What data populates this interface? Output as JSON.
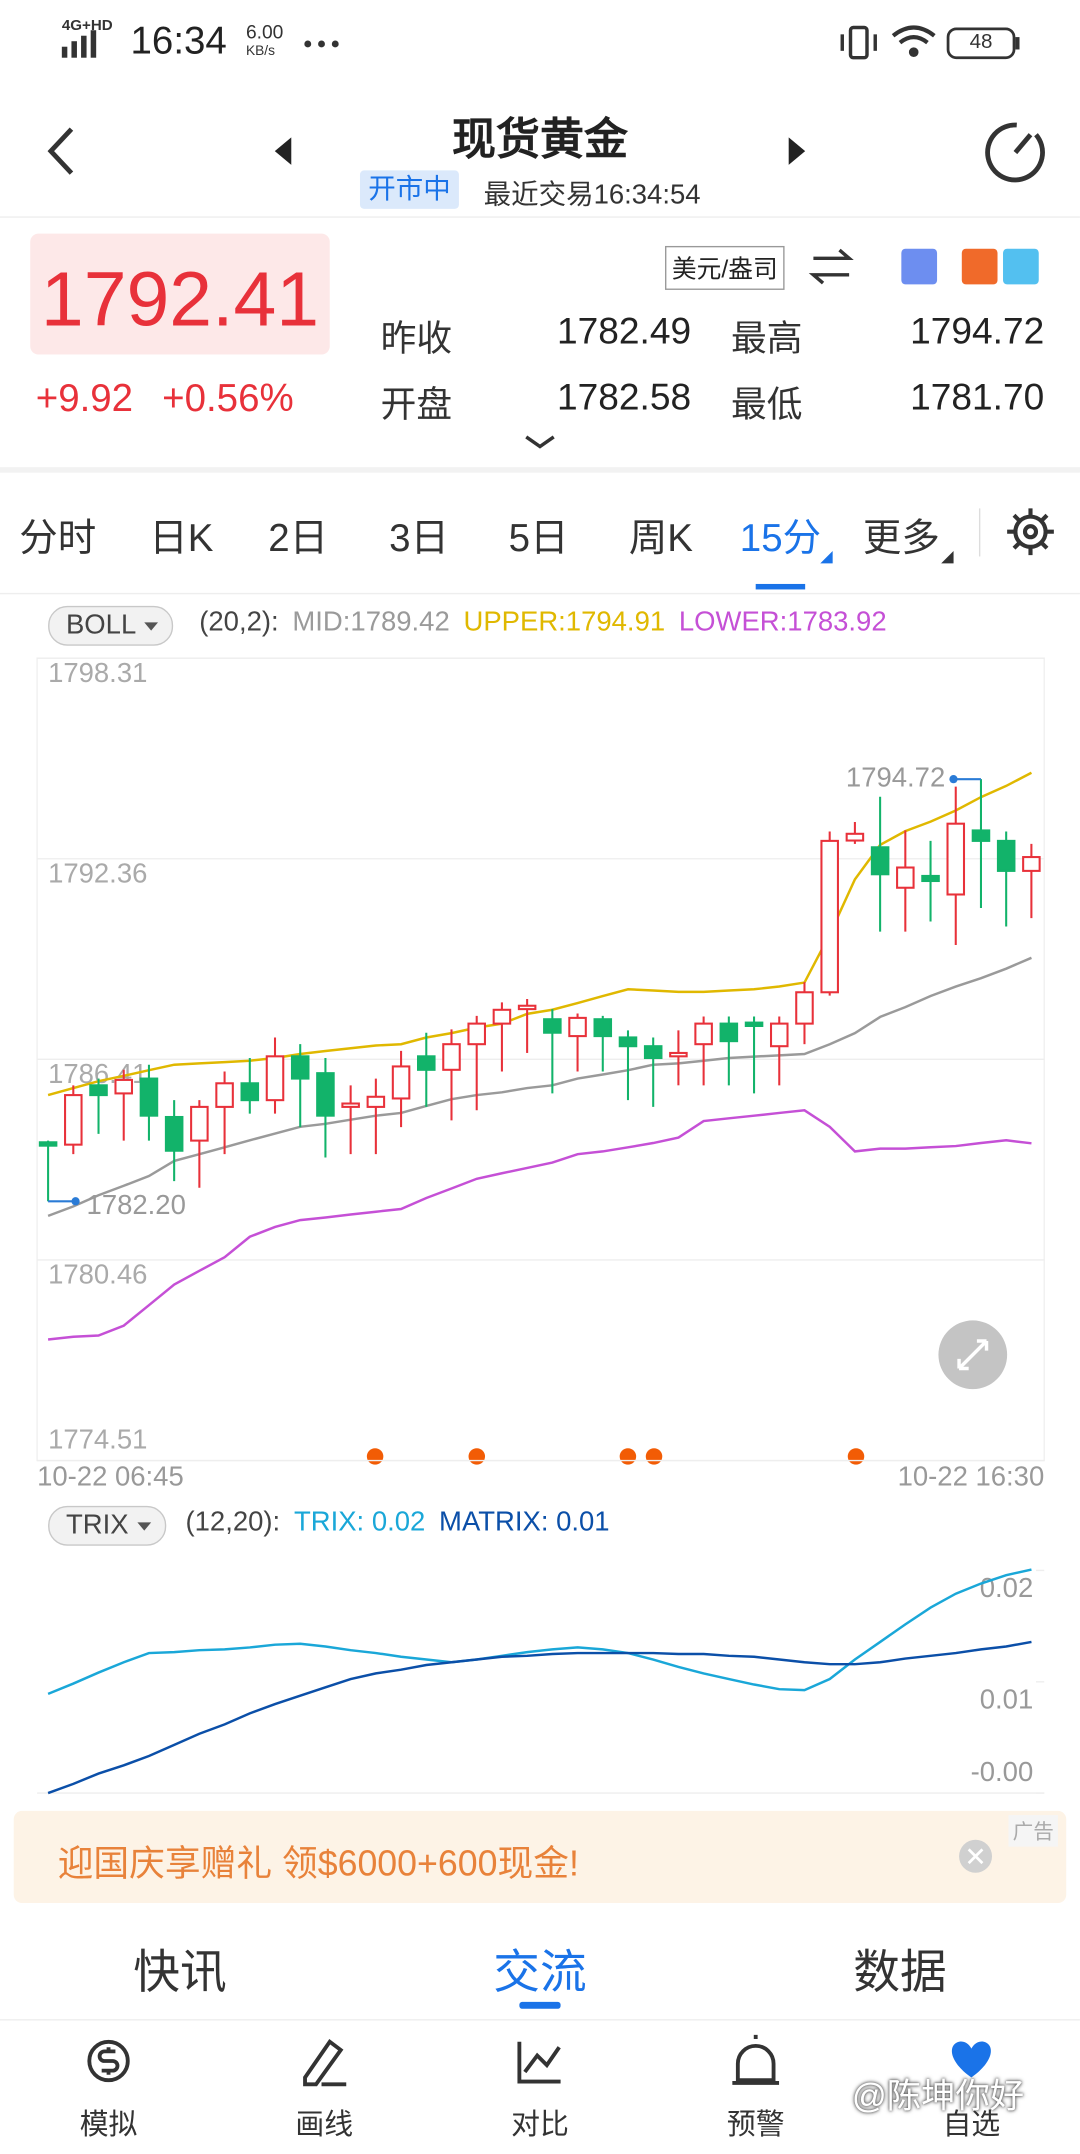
{
  "status_bar": {
    "network": "4G+HD",
    "time": "16:34",
    "speed": "6.00",
    "speed_unit": "KB/s",
    "battery": "48"
  },
  "header": {
    "title": "现货黄金",
    "status": "开市中",
    "last_trade": "最近交易16:34:54"
  },
  "quote": {
    "price": "1792.41",
    "change": "+9.92",
    "change_pct": "+0.56%",
    "unit": "美元/盎司",
    "stats": [
      {
        "label": "昨收",
        "value": "1782.49"
      },
      {
        "label": "最高",
        "value": "1794.72"
      },
      {
        "label": "开盘",
        "value": "1782.58"
      },
      {
        "label": "最低",
        "value": "1781.70"
      }
    ]
  },
  "tabs": [
    "分时",
    "日K",
    "2日",
    "3日",
    "5日",
    "周K",
    "15分",
    "更多"
  ],
  "active_tab": 6,
  "chart_data": [
    {
      "type": "candlestick",
      "indicator": "BOLL",
      "params": "(20,2):",
      "categories": [
        "10-22 06:45",
        null,
        null,
        null,
        null,
        null,
        null,
        null,
        null,
        null,
        null,
        null,
        null,
        null,
        null,
        null,
        null,
        null,
        null,
        null,
        null,
        null,
        null,
        null,
        null,
        null,
        null,
        null,
        null,
        null,
        null,
        null,
        null,
        null,
        null,
        null,
        null,
        null,
        null,
        "10-22 16:30"
      ],
      "open": [
        1783.95,
        1783.88,
        1785.64,
        1785.4,
        1785.84,
        1784.7,
        1784.0,
        1785.0,
        1785.7,
        1785.2,
        1786.5,
        1786.0,
        1785.0,
        1785.0,
        1785.25,
        1786.5,
        1786.1,
        1786.86,
        1787.47,
        1787.9,
        1787.6,
        1787.1,
        1787.6,
        1787.06,
        1786.8,
        1786.5,
        1786.86,
        1787.47,
        1787.5,
        1786.8,
        1787.47,
        1788.4,
        1792.9,
        1792.7,
        1791.5,
        1791.85,
        1791.3,
        1793.2,
        1792.89,
        1792.0
      ],
      "high": [
        1784.0,
        1785.64,
        1785.84,
        1786.1,
        1786.25,
        1785.2,
        1785.2,
        1786.05,
        1786.45,
        1787.06,
        1786.86,
        1786.45,
        1785.64,
        1785.84,
        1786.66,
        1787.2,
        1787.3,
        1787.7,
        1788.1,
        1788.2,
        1787.9,
        1787.77,
        1787.7,
        1787.27,
        1787.06,
        1787.27,
        1787.68,
        1787.68,
        1787.68,
        1787.68,
        1788.7,
        1793.17,
        1793.45,
        1794.2,
        1793.2,
        1792.89,
        1794.5,
        1794.72,
        1793.17,
        1792.8
      ],
      "low": [
        1782.2,
        1783.6,
        1784.2,
        1784.0,
        1784.0,
        1782.8,
        1782.6,
        1783.6,
        1784.8,
        1784.8,
        1784.4,
        1783.5,
        1783.6,
        1783.6,
        1784.4,
        1785.0,
        1784.6,
        1784.9,
        1786.05,
        1786.6,
        1785.4,
        1786.05,
        1786.05,
        1785.2,
        1785.0,
        1785.64,
        1785.64,
        1785.64,
        1785.4,
        1785.64,
        1786.86,
        1788.3,
        1792.8,
        1790.2,
        1790.2,
        1790.5,
        1789.8,
        1790.9,
        1790.35,
        1790.6
      ],
      "close": [
        1783.85,
        1785.35,
        1785.35,
        1785.8,
        1784.74,
        1783.7,
        1785.0,
        1785.7,
        1785.2,
        1786.5,
        1785.84,
        1784.74,
        1785.1,
        1785.3,
        1786.2,
        1786.1,
        1786.86,
        1787.47,
        1787.88,
        1788.0,
        1787.2,
        1787.64,
        1787.1,
        1786.8,
        1786.45,
        1786.6,
        1787.47,
        1786.95,
        1787.4,
        1787.47,
        1788.4,
        1792.89,
        1793.1,
        1791.9,
        1792.1,
        1791.7,
        1793.4,
        1792.89,
        1792.0,
        1792.41
      ],
      "up_color": "#e8313a",
      "down_color": "#12b36a",
      "series": [
        {
          "name": "MID:1789.42",
          "color": "#9a9a9a",
          "values": [
            1781.77,
            1782.05,
            1782.38,
            1782.66,
            1782.95,
            1783.4,
            1783.6,
            1783.8,
            1784.01,
            1784.21,
            1784.41,
            1784.5,
            1784.62,
            1784.74,
            1784.82,
            1785.03,
            1785.23,
            1785.35,
            1785.43,
            1785.56,
            1785.64,
            1785.84,
            1785.96,
            1786.09,
            1786.25,
            1786.29,
            1786.37,
            1786.45,
            1786.49,
            1786.53,
            1786.57,
            1786.86,
            1787.19,
            1787.67,
            1787.96,
            1788.29,
            1788.57,
            1788.82,
            1789.1,
            1789.42
          ]
        },
        {
          "name": "UPPER:1794.91",
          "color": "#e0b800",
          "values": [
            1785.35,
            1785.56,
            1785.76,
            1785.92,
            1786.09,
            1786.25,
            1786.29,
            1786.33,
            1786.37,
            1786.45,
            1786.57,
            1786.66,
            1786.74,
            1786.82,
            1786.86,
            1787.06,
            1787.19,
            1787.35,
            1787.47,
            1787.76,
            1787.88,
            1788.08,
            1788.29,
            1788.49,
            1788.45,
            1788.41,
            1788.41,
            1788.45,
            1788.49,
            1788.57,
            1788.69,
            1790.12,
            1791.75,
            1792.77,
            1793.18,
            1793.46,
            1793.79,
            1794.19,
            1794.52,
            1794.91
          ]
        },
        {
          "name": "LOWER:1783.92",
          "color": "#c550d6",
          "values": [
            1778.1,
            1778.18,
            1778.22,
            1778.51,
            1779.12,
            1779.73,
            1780.14,
            1780.54,
            1781.15,
            1781.44,
            1781.64,
            1781.72,
            1781.81,
            1781.89,
            1781.97,
            1782.3,
            1782.58,
            1782.87,
            1783.03,
            1783.19,
            1783.35,
            1783.6,
            1783.68,
            1783.8,
            1783.93,
            1784.09,
            1784.58,
            1784.66,
            1784.74,
            1784.82,
            1784.9,
            1784.41,
            1783.68,
            1783.76,
            1783.76,
            1783.8,
            1783.84,
            1783.93,
            1784.01,
            1783.92
          ]
        }
      ],
      "annotations": {
        "high": "1794.72",
        "low": "1782.20"
      },
      "ylim": [
        1774.51,
        1798.31
      ],
      "yticks": [
        1798.31,
        1792.36,
        1786.41,
        1780.46,
        1774.51
      ],
      "grid": true
    },
    {
      "type": "line",
      "indicator": "TRIX",
      "params": "(12,20):",
      "series": [
        {
          "name": "TRIX: 0.02",
          "color": "#1aa7d8",
          "values": [
            0.0087,
            0.0098,
            0.011,
            0.0121,
            0.0131,
            0.0132,
            0.0134,
            0.0135,
            0.0137,
            0.014,
            0.0141,
            0.0138,
            0.0134,
            0.0131,
            0.0127,
            0.0124,
            0.0121,
            0.0124,
            0.0128,
            0.0132,
            0.0135,
            0.0137,
            0.0135,
            0.0131,
            0.0124,
            0.0116,
            0.0109,
            0.0103,
            0.0097,
            0.0092,
            0.0091,
            0.0103,
            0.0124,
            0.0143,
            0.0162,
            0.018,
            0.0195,
            0.0206,
            0.0215,
            0.0221
          ]
        },
        {
          "name": "MATRIX: 0.01",
          "color": "#0b4fa8",
          "values": [
            -0.002,
            -0.001,
            0.0001,
            0.001,
            0.002,
            0.0032,
            0.0044,
            0.0054,
            0.0066,
            0.0076,
            0.0085,
            0.0094,
            0.0103,
            0.0109,
            0.0113,
            0.0118,
            0.0121,
            0.0124,
            0.0127,
            0.0128,
            0.013,
            0.0131,
            0.0131,
            0.0131,
            0.0131,
            0.013,
            0.013,
            0.0128,
            0.0127,
            0.0124,
            0.0121,
            0.0119,
            0.0119,
            0.0121,
            0.0125,
            0.0128,
            0.0131,
            0.0135,
            0.0138,
            0.0143
          ]
        }
      ],
      "ylim": [
        -0.002,
        0.022
      ],
      "yticks": [
        {
          "value": 0.022,
          "label": "0.02"
        },
        0.01,
        {
          "value": -0.002,
          "label": "-0.00"
        }
      ]
    }
  ],
  "ad": {
    "text": "迎国庆享赠礼 领$6000+600现金!",
    "tag": "广告"
  },
  "sections": [
    "快讯",
    "交流",
    "数据"
  ],
  "active_section": 1,
  "nav": [
    "模拟",
    "画线",
    "对比",
    "预警",
    "自选"
  ],
  "watermark": "@陈坤你好"
}
